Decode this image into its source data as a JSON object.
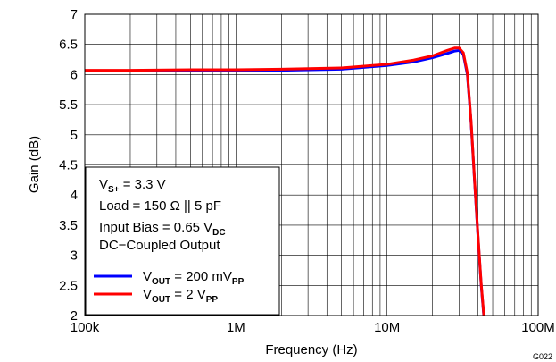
{
  "chart_data": {
    "type": "line",
    "figure_id": "G022",
    "xlabel": "Frequency (Hz)",
    "ylabel": "Gain (dB)",
    "x_scale": "log",
    "xlim": [
      100000,
      100000000
    ],
    "ylim": [
      2,
      7
    ],
    "x_ticks": [
      {
        "value": 100000,
        "label": "100k"
      },
      {
        "value": 1000000,
        "label": "1M"
      },
      {
        "value": 10000000,
        "label": "10M"
      },
      {
        "value": 100000000,
        "label": "100M"
      }
    ],
    "y_ticks": [
      {
        "value": 2,
        "label": "2"
      },
      {
        "value": 2.5,
        "label": "2.5"
      },
      {
        "value": 3,
        "label": "3"
      },
      {
        "value": 3.5,
        "label": "3.5"
      },
      {
        "value": 4,
        "label": "4"
      },
      {
        "value": 4.5,
        "label": "4.5"
      },
      {
        "value": 5,
        "label": "5"
      },
      {
        "value": 5.5,
        "label": "5.5"
      },
      {
        "value": 6,
        "label": "6"
      },
      {
        "value": 6.5,
        "label": "6.5"
      },
      {
        "value": 7,
        "label": "7"
      }
    ],
    "grid": true,
    "conditions": {
      "supply": {
        "base": "V",
        "sub": "S+",
        "rest": " = 3.3 V"
      },
      "load": "Load = 150 Ω || 5 pF",
      "input_bias": {
        "text": "Input Bias = 0.65 V",
        "sub": "DC"
      },
      "coupling": "DC−Coupled Output"
    },
    "legend_position": "bottom-left",
    "series": [
      {
        "name": "V_OUT = 200 mV_PP",
        "legend": {
          "base": "V",
          "sub": "OUT",
          "mid": " = 200 mV",
          "sub2": "PP"
        },
        "color": "#0000ff",
        "x": [
          100000,
          200000,
          500000,
          1000000,
          2000000,
          5000000,
          10000000,
          15000000,
          20000000,
          25000000,
          28000000,
          30000000,
          32000000,
          34000000,
          36000000,
          38000000,
          40000000,
          42000000,
          44000000
        ],
        "y": [
          6.06,
          6.06,
          6.06,
          6.07,
          6.07,
          6.09,
          6.15,
          6.21,
          6.28,
          6.35,
          6.39,
          6.4,
          6.33,
          6.0,
          5.2,
          4.2,
          3.3,
          2.5,
          1.9
        ]
      },
      {
        "name": "V_OUT = 2 V_PP",
        "legend": {
          "base": "V",
          "sub": "OUT",
          "mid": " = 2 V",
          "sub2": "PP"
        },
        "color": "#ff0000",
        "x": [
          100000,
          200000,
          500000,
          1000000,
          2000000,
          5000000,
          10000000,
          15000000,
          20000000,
          25000000,
          28000000,
          30000000,
          32000000,
          34000000,
          36000000,
          38000000,
          40000000,
          42000000,
          44000000
        ],
        "y": [
          6.07,
          6.07,
          6.08,
          6.08,
          6.09,
          6.11,
          6.17,
          6.24,
          6.31,
          6.4,
          6.44,
          6.44,
          6.36,
          6.03,
          5.22,
          4.22,
          3.32,
          2.52,
          1.92
        ]
      }
    ]
  }
}
